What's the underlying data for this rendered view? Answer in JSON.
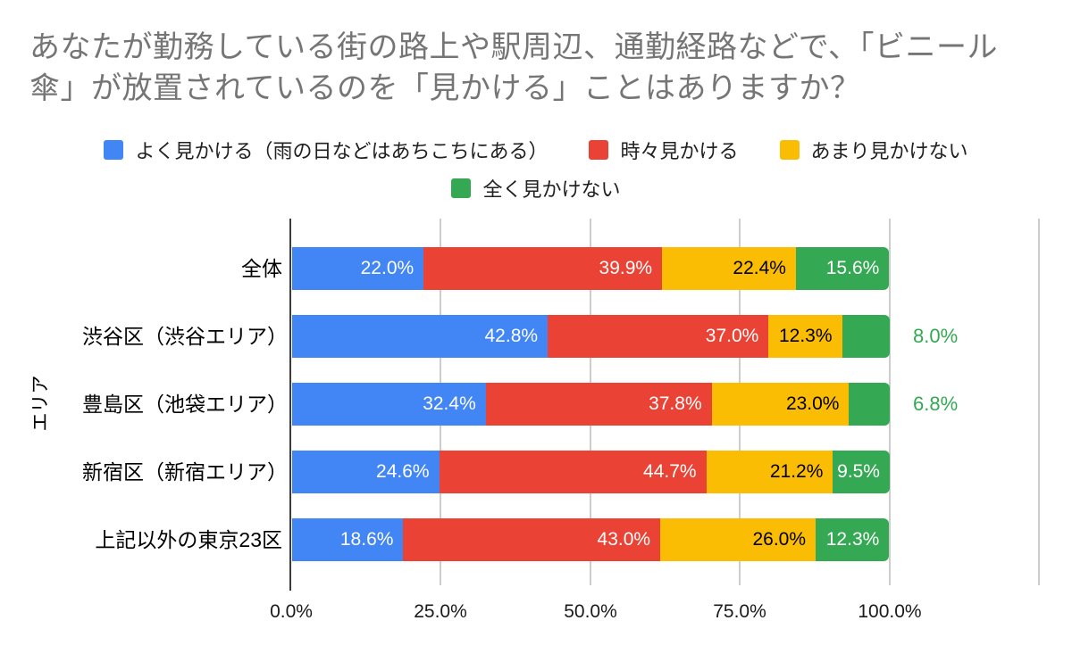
{
  "title": "あなたが勤務している街の路上や駅周辺、通勤経路などで、「ビニール傘」が放置されているのを「見かける」ことはありますか？",
  "legend": {
    "rows": [
      [
        0,
        1,
        2
      ],
      [
        3
      ]
    ]
  },
  "colors": {
    "background": "#ffffff",
    "title_text": "#757575",
    "axis_line": "#3c3c3c",
    "gridline": "#cdcdcd",
    "blue": "#4285F4",
    "red": "#EA4335",
    "yellow": "#FBBC04",
    "green": "#34A853",
    "outside_label": "#34A853"
  },
  "chart_data": {
    "type": "bar",
    "stacked": true,
    "orientation": "horizontal",
    "title": "あなたが勤務している街の路上や駅周辺、通勤経路などで、「ビニール傘」が放置されているのを「見かける」ことはありますか？",
    "ylabel": "エリア",
    "xlim": [
      0,
      100
    ],
    "x_tick_labels": [
      "0.0%",
      "25.0%",
      "50.0%",
      "75.0%",
      "100.0%"
    ],
    "grid": true,
    "legend_position": "top",
    "value_label_format": "0.0%",
    "categories": [
      "全体",
      "渋谷区（渋谷エリア）",
      "豊島区（池袋エリア）",
      "新宿区（新宿エリア）",
      "上記以外の東京23区"
    ],
    "series": [
      {
        "name": "よく見かける（雨の日などはあちこちにある）",
        "color": "#4285F4",
        "label_color": "#ffffff",
        "values": [
          22.0,
          42.8,
          32.4,
          24.6,
          18.6
        ]
      },
      {
        "name": "時々見かける",
        "color": "#EA4335",
        "label_color": "#ffffff",
        "values": [
          39.9,
          37.0,
          37.8,
          44.7,
          43.0
        ]
      },
      {
        "name": "あまり見かけない",
        "color": "#FBBC04",
        "label_color": "#000000",
        "values": [
          22.4,
          12.3,
          23.0,
          21.2,
          26.0
        ]
      },
      {
        "name": "全く見かけない",
        "color": "#34A853",
        "label_color": "#ffffff",
        "values": [
          15.6,
          8.0,
          6.8,
          9.5,
          12.3
        ]
      }
    ],
    "labels_outside": [
      {
        "category_index": 1,
        "series_index": 3,
        "label": "8.0%"
      },
      {
        "category_index": 2,
        "series_index": 3,
        "label": "6.8%"
      }
    ]
  }
}
